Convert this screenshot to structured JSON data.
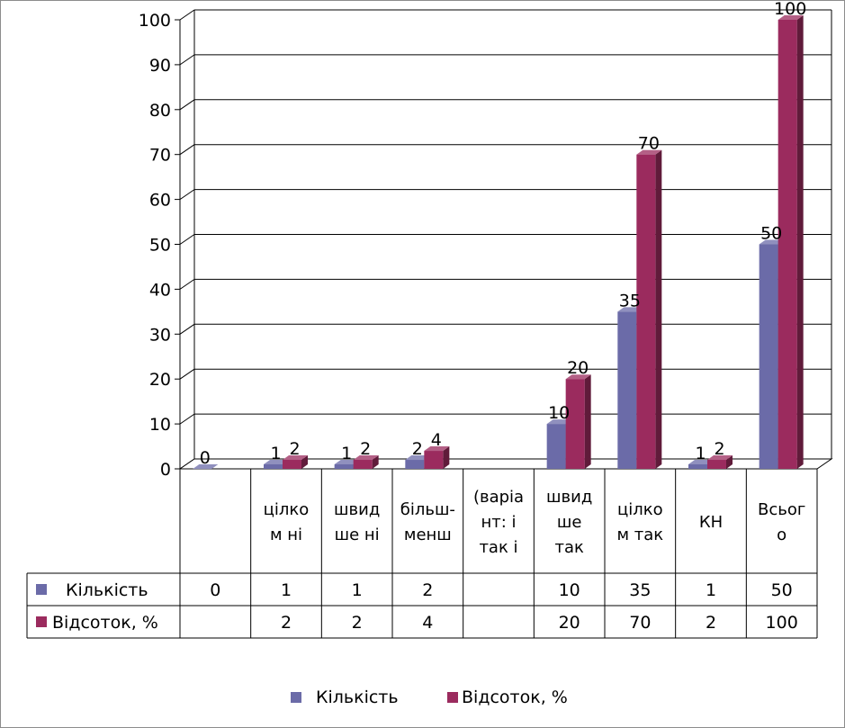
{
  "chart_data": {
    "type": "bar",
    "style": "3d-clustered-column-with-data-table",
    "categories": [
      "",
      [
        "цілко",
        "м ні"
      ],
      [
        "швид",
        "ше ні"
      ],
      [
        "більш-",
        "менш"
      ],
      [
        "(варіа",
        "нт:  і",
        "так  і"
      ],
      [
        "швид",
        "ше",
        "так"
      ],
      [
        "цілко",
        "м так"
      ],
      [
        "КН"
      ],
      [
        "Всьог",
        "о"
      ]
    ],
    "series": [
      {
        "name": "Кількість",
        "color": "#6b6ba8",
        "values": [
          0,
          1,
          1,
          2,
          null,
          10,
          35,
          1,
          50
        ],
        "table_values": [
          "0",
          "1",
          "1",
          "2",
          "",
          "10",
          "35",
          "1",
          "50"
        ]
      },
      {
        "name": "Відсоток, %",
        "color": "#9b2b5e",
        "values": [
          null,
          2,
          2,
          4,
          null,
          20,
          70,
          2,
          100
        ],
        "table_values": [
          "",
          "2",
          "2",
          "4",
          "",
          "20",
          "70",
          "2",
          "100"
        ]
      }
    ],
    "yticks": [
      "0",
      "10",
      "20",
      "30",
      "40",
      "50",
      "60",
      "70",
      "80",
      "90",
      "100"
    ],
    "ylim": [
      0,
      100
    ],
    "grid": true,
    "legend": "bottom",
    "data_labels": true
  }
}
